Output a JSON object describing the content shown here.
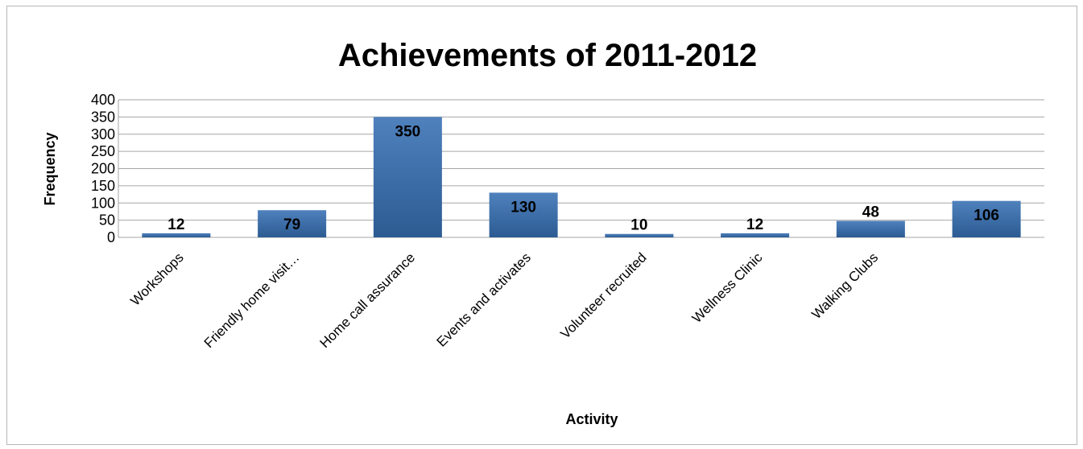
{
  "chart_data": {
    "type": "bar",
    "title": "Achievements of 2011-2012",
    "xlabel": "Activity",
    "ylabel": "Frequency",
    "ylim": [
      0,
      400
    ],
    "yticks": [
      0,
      50,
      100,
      150,
      200,
      250,
      300,
      350,
      400
    ],
    "categories": [
      "Workshops",
      "Friendly home visit…",
      "Home call assurance",
      "Events and activates",
      "Volunteer recruited",
      "Wellness Clinic",
      "Walking Clubs",
      ""
    ],
    "values": [
      12,
      79,
      350,
      130,
      10,
      12,
      48,
      106
    ],
    "data_labels": [
      "12",
      "79",
      "350",
      "130",
      "10",
      "12",
      "48",
      "106"
    ],
    "grid": true,
    "legend": "none",
    "colors": {
      "bar_top": "#4f81bd",
      "bar_bottom": "#2c5b92",
      "grid": "#a6a6a6"
    }
  }
}
